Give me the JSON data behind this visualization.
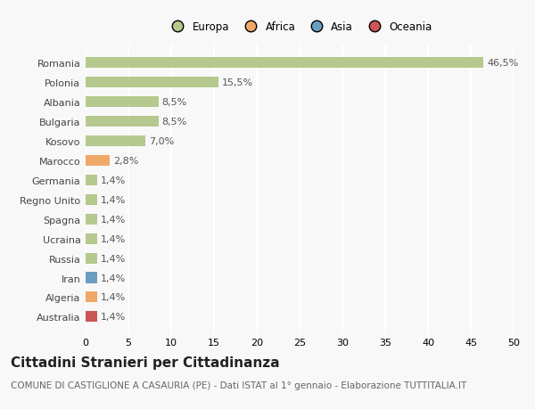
{
  "countries": [
    "Romania",
    "Polonia",
    "Albania",
    "Bulgaria",
    "Kosovo",
    "Marocco",
    "Germania",
    "Regno Unito",
    "Spagna",
    "Ucraina",
    "Russia",
    "Iran",
    "Algeria",
    "Australia"
  ],
  "values": [
    46.5,
    15.5,
    8.5,
    8.5,
    7.0,
    2.8,
    1.4,
    1.4,
    1.4,
    1.4,
    1.4,
    1.4,
    1.4,
    1.4
  ],
  "labels": [
    "46,5%",
    "15,5%",
    "8,5%",
    "8,5%",
    "7,0%",
    "2,8%",
    "1,4%",
    "1,4%",
    "1,4%",
    "1,4%",
    "1,4%",
    "1,4%",
    "1,4%",
    "1,4%"
  ],
  "colors": [
    "#b5c98e",
    "#b5c98e",
    "#b5c98e",
    "#b5c98e",
    "#b5c98e",
    "#f0a868",
    "#b5c98e",
    "#b5c98e",
    "#b5c98e",
    "#b5c98e",
    "#b5c98e",
    "#6a9ec0",
    "#f0a868",
    "#cc5555"
  ],
  "legend_labels": [
    "Europa",
    "Africa",
    "Asia",
    "Oceania"
  ],
  "legend_colors": [
    "#b5c98e",
    "#f0a868",
    "#6a9ec0",
    "#cc5555"
  ],
  "title": "Cittadini Stranieri per Cittadinanza",
  "subtitle": "COMUNE DI CASTIGLIONE A CASAURIA (PE) - Dati ISTAT al 1° gennaio - Elaborazione TUTTITALIA.IT",
  "xlim": [
    0,
    50
  ],
  "xticks": [
    0,
    5,
    10,
    15,
    20,
    25,
    30,
    35,
    40,
    45,
    50
  ],
  "background_color": "#f8f8f8",
  "grid_color": "#ffffff",
  "bar_height": 0.55,
  "title_fontsize": 11,
  "subtitle_fontsize": 7.5,
  "label_fontsize": 8,
  "tick_fontsize": 8,
  "label_color": "#555555",
  "ytick_color": "#444444"
}
